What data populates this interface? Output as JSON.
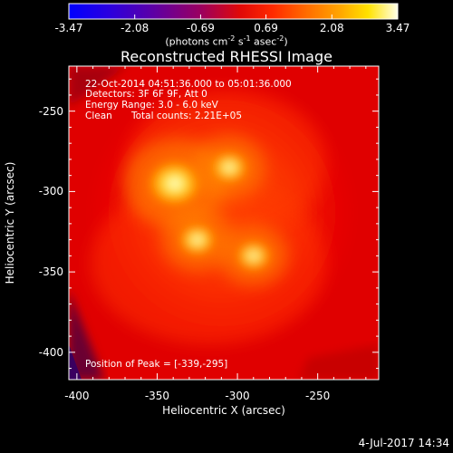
{
  "colorbar": {
    "ticks": [
      "-3.47",
      "-2.08",
      "-0.69",
      "0.69",
      "2.08",
      "3.47"
    ],
    "tick_values": [
      -3.47,
      -2.08,
      -0.69,
      0.69,
      2.08,
      3.47
    ],
    "range": [
      -3.47,
      3.47
    ],
    "unit_main": "(photons cm",
    "unit_e1": "-2",
    "unit_mid": " s",
    "unit_e2": "-1",
    "unit_end": " asec",
    "unit_e3": "-2",
    "unit_close": ")"
  },
  "title": "Reconstructed RHESSI Image",
  "info": {
    "time": "22-Oct-2014 04:51:36.000 to 05:01:36.000",
    "detectors": "Detectors: 3F 6F 9F, Att 0",
    "energy": "Energy Range: 3.0 - 6.0 keV",
    "clean": "Clean",
    "total_counts": "Total counts: 2.21E+05",
    "peak": "Position of Peak = [-339,-295]"
  },
  "axes": {
    "xlabel": "Heliocentric X (arcsec)",
    "ylabel": "Heliocentric Y (arcsec)",
    "xticks": [
      "-400",
      "-350",
      "-300",
      "-250"
    ],
    "xtick_values": [
      -400,
      -350,
      -300,
      -250
    ],
    "yticks": [
      "-250",
      "-300",
      "-350",
      "-400"
    ],
    "ytick_values": [
      -250,
      -300,
      -350,
      -400
    ]
  },
  "footer_date": "4-Jul-2017 14:34",
  "chart_data": {
    "type": "heatmap",
    "title": "Reconstructed RHESSI Image",
    "xlabel": "Heliocentric X (arcsec)",
    "ylabel": "Heliocentric Y (arcsec)",
    "xlim": [
      -405,
      -212
    ],
    "ylim": [
      -417,
      -222
    ],
    "colormap": "rhessi fire (blue-purple-red-orange-yellow-white)",
    "color_range": [
      -3.47,
      3.47
    ],
    "peak_position": [
      -339,
      -295
    ],
    "sources": [
      {
        "x": -339,
        "y": -295,
        "relative_intensity": 1.0
      },
      {
        "x": -305,
        "y": -285,
        "relative_intensity": 0.8
      },
      {
        "x": -325,
        "y": -330,
        "relative_intensity": 0.8
      },
      {
        "x": -290,
        "y": -340,
        "relative_intensity": 0.7
      }
    ]
  }
}
